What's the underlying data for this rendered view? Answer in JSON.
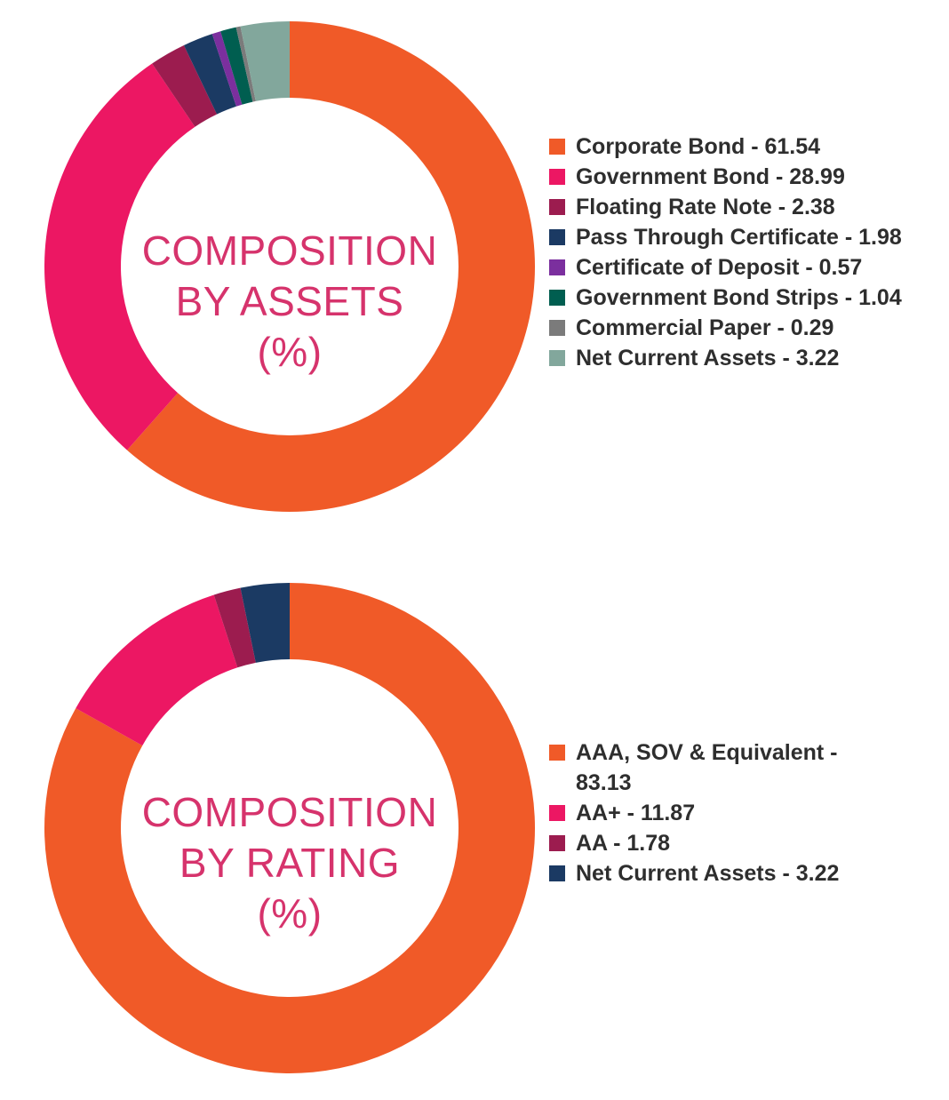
{
  "chart_data": [
    {
      "type": "pie",
      "variant": "donut",
      "title_lines": [
        "COMPOSITION",
        "BY ASSETS",
        "(%)"
      ],
      "legend_placement": "right",
      "slices": [
        {
          "label": "Corporate Bond - 61.54",
          "value": 61.54,
          "color": "#f05a28"
        },
        {
          "label": "Government Bond - 28.99",
          "value": 28.99,
          "color": "#ec1763"
        },
        {
          "label": "Floating Rate Note - 2.38",
          "value": 2.38,
          "color": "#9c1c4f"
        },
        {
          "label": "Pass Through Certificate - 1.98",
          "value": 1.98,
          "color": "#1b3a63"
        },
        {
          "label": "Certificate of Deposit - 0.57",
          "value": 0.57,
          "color": "#7b2f9e"
        },
        {
          "label": "Government Bond Strips - 1.04",
          "value": 1.04,
          "color": "#005e50"
        },
        {
          "label": "Commercial Paper - 0.29",
          "value": 0.29,
          "color": "#7b7b7b"
        },
        {
          "label": "Net Current Assets - 3.22",
          "value": 3.22,
          "color": "#82a79c"
        }
      ]
    },
    {
      "type": "pie",
      "variant": "donut",
      "title_lines": [
        "COMPOSITION",
        "BY RATING",
        "(%)"
      ],
      "legend_placement": "right",
      "slices": [
        {
          "label": "AAA, SOV & Equivalent - 83.13",
          "value": 83.13,
          "color": "#f05a28"
        },
        {
          "label": "AA+ - 11.87",
          "value": 11.87,
          "color": "#ec1763"
        },
        {
          "label": "AA - 1.78",
          "value": 1.78,
          "color": "#9c1c4f"
        },
        {
          "label": "Net Current Assets - 3.22",
          "value": 3.22,
          "color": "#1b3a63"
        }
      ]
    }
  ]
}
